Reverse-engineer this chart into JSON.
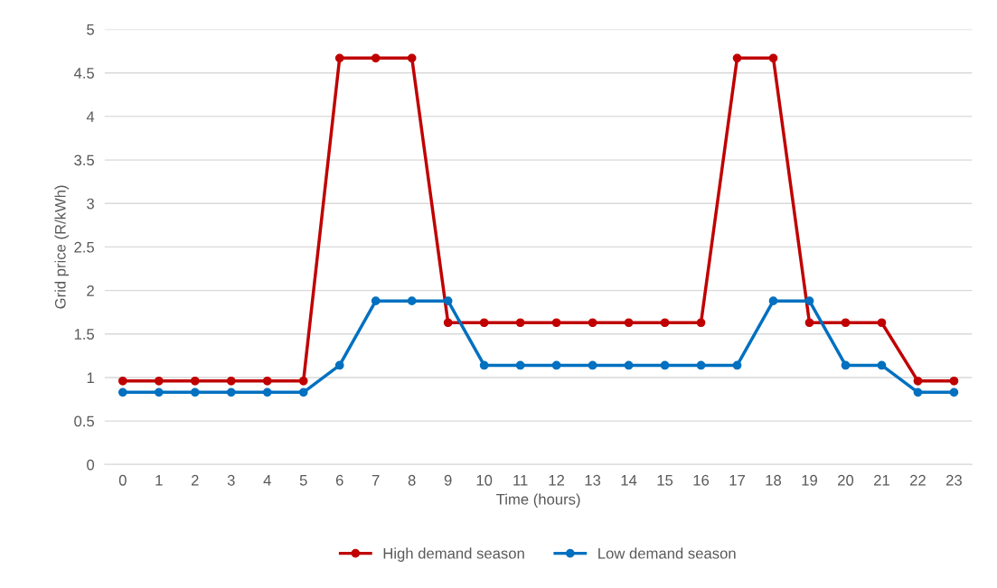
{
  "chart_data": {
    "type": "line",
    "xlabel": "Time (hours)",
    "ylabel": "Grid price (R/kWh)",
    "categories": [
      "0",
      "1",
      "2",
      "3",
      "4",
      "5",
      "6",
      "7",
      "8",
      "9",
      "10",
      "11",
      "12",
      "13",
      "14",
      "15",
      "16",
      "17",
      "18",
      "19",
      "20",
      "21",
      "22",
      "23"
    ],
    "series": [
      {
        "name": "High demand season",
        "color": "#c00000",
        "values": [
          0.96,
          0.96,
          0.96,
          0.96,
          0.96,
          0.96,
          4.67,
          4.67,
          4.67,
          1.63,
          1.63,
          1.63,
          1.63,
          1.63,
          1.63,
          1.63,
          1.63,
          4.67,
          4.67,
          1.63,
          1.63,
          1.63,
          0.96,
          0.96
        ]
      },
      {
        "name": "Low demand season",
        "color": "#0070c0",
        "values": [
          0.83,
          0.83,
          0.83,
          0.83,
          0.83,
          0.83,
          1.14,
          1.88,
          1.88,
          1.88,
          1.14,
          1.14,
          1.14,
          1.14,
          1.14,
          1.14,
          1.14,
          1.14,
          1.88,
          1.88,
          1.14,
          1.14,
          0.83,
          0.83
        ]
      }
    ],
    "ylim": [
      0,
      5
    ],
    "yticks": [
      0,
      0.5,
      1,
      1.5,
      2,
      2.5,
      3,
      3.5,
      4,
      4.5,
      5
    ],
    "grid": "y",
    "legend": "bottom",
    "marker": "circle",
    "line_style": "solid"
  }
}
